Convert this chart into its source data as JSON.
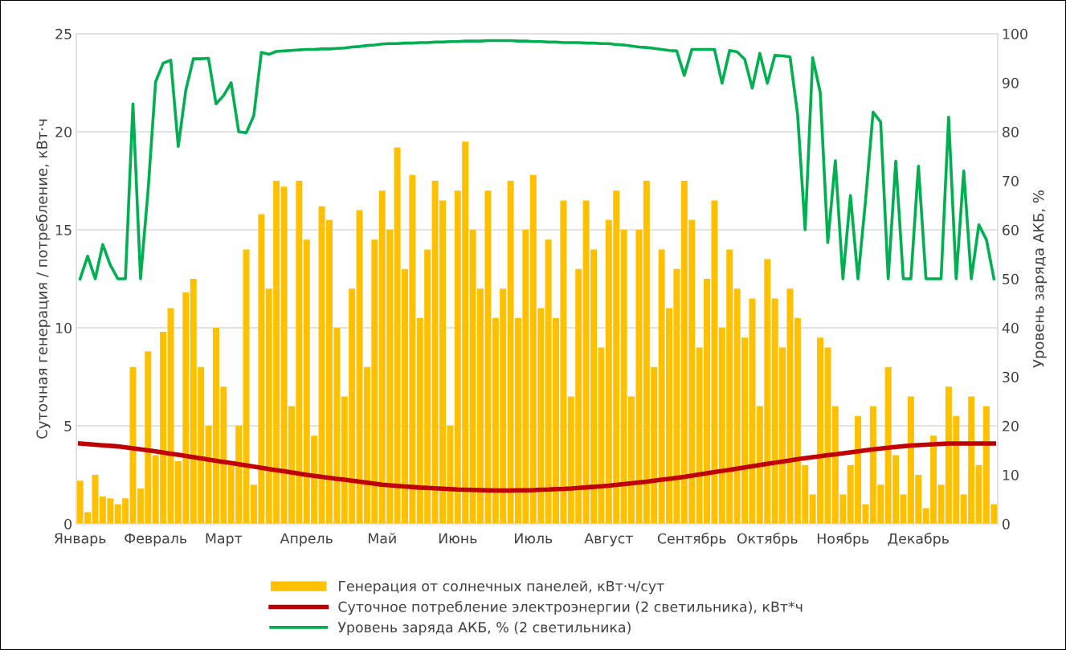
{
  "chart_data": {
    "type": "bar",
    "ylabel": "Суточная генерация / потребление, кВт·ч",
    "y2label": "Уровень заряда АКБ, %",
    "categories": [
      "Январь",
      null,
      null,
      null,
      null,
      null,
      null,
      null,
      null,
      null,
      "Февраль",
      null,
      null,
      null,
      null,
      null,
      null,
      null,
      null,
      "Март",
      null,
      null,
      null,
      null,
      null,
      null,
      null,
      null,
      null,
      null,
      "Апрель",
      null,
      null,
      null,
      null,
      null,
      null,
      null,
      null,
      null,
      "Май",
      null,
      null,
      null,
      null,
      null,
      null,
      null,
      null,
      null,
      "Июнь",
      null,
      null,
      null,
      null,
      null,
      null,
      null,
      null,
      null,
      "Июль",
      null,
      null,
      null,
      null,
      null,
      null,
      null,
      null,
      null,
      "Август",
      null,
      null,
      null,
      null,
      null,
      null,
      null,
      null,
      null,
      null,
      "Сентябрь",
      null,
      null,
      null,
      null,
      null,
      null,
      null,
      null,
      null,
      "Октябрь",
      null,
      null,
      null,
      null,
      null,
      null,
      null,
      null,
      null,
      "Ноябрь",
      null,
      null,
      null,
      null,
      null,
      null,
      null,
      null,
      null,
      "Декабрь",
      null,
      null,
      null,
      null,
      null,
      null,
      null,
      null,
      null,
      null
    ],
    "ylim": [
      0,
      25
    ],
    "yticks": [
      0,
      5,
      10,
      15,
      20,
      25
    ],
    "y2lim": [
      0,
      100
    ],
    "y2ticks": [
      0,
      10,
      20,
      30,
      40,
      50,
      60,
      70,
      80,
      90,
      100
    ],
    "grid": "y",
    "legend": "bottom",
    "series": [
      {
        "name": "Генерация от солнечных панелей, кВт·ч/сут",
        "color": "#ffc000",
        "values": [
          2.2,
          0.6,
          2.5,
          1.4,
          1.3,
          1.0,
          1.3,
          8.0,
          1.8,
          8.8,
          3.5,
          9.8,
          11.0,
          3.2,
          11.8,
          12.5,
          8.0,
          5.0,
          10.0,
          7.0,
          3.0,
          5.0,
          14.0,
          2.0,
          15.8,
          12.0,
          17.5,
          17.2,
          6.0,
          17.5,
          14.5,
          4.5,
          16.2,
          15.5,
          10.0,
          6.5,
          12.0,
          16.0,
          8.0,
          14.5,
          17.0,
          15.0,
          19.2,
          13.0,
          17.8,
          10.5,
          14.0,
          17.5,
          16.5,
          5.0,
          17.0,
          19.5,
          15.0,
          12.0,
          17.0,
          10.5,
          12.0,
          17.5,
          10.5,
          15.0,
          17.8,
          11.0,
          14.5,
          10.5,
          16.5,
          6.5,
          13.0,
          16.5,
          14.0,
          9.0,
          15.5,
          17.0,
          15.0,
          6.5,
          15.0,
          17.5,
          8.0,
          14.0,
          11.0,
          13.0,
          17.5,
          15.5,
          9.0,
          12.5,
          16.5,
          10.0,
          14.0,
          12.0,
          9.5,
          11.5,
          6.0,
          13.5,
          11.5,
          9.0,
          12.0,
          10.5,
          3.0,
          1.5,
          9.5,
          9.0,
          6.0,
          1.5,
          3.0,
          5.5,
          1.0,
          6.0,
          2.0,
          8.0,
          3.5,
          1.5,
          6.5,
          2.5,
          0.8,
          4.5,
          2.0,
          7.0,
          5.5,
          1.5,
          6.5,
          3.0,
          6.0,
          1.0
        ]
      },
      {
        "name": "Суточное потребление электроэнергии (2 светильника), кВт*ч",
        "type": "line",
        "color": "#c00000",
        "values": [
          4.1,
          4.07,
          4.04,
          4.01,
          3.98,
          3.95,
          3.9,
          3.85,
          3.8,
          3.75,
          3.7,
          3.64,
          3.58,
          3.52,
          3.46,
          3.4,
          3.34,
          3.28,
          3.22,
          3.16,
          3.1,
          3.04,
          2.98,
          2.92,
          2.86,
          2.8,
          2.74,
          2.68,
          2.62,
          2.56,
          2.5,
          2.45,
          2.4,
          2.35,
          2.3,
          2.25,
          2.2,
          2.15,
          2.1,
          2.05,
          2.0,
          1.97,
          1.94,
          1.91,
          1.88,
          1.85,
          1.83,
          1.81,
          1.79,
          1.77,
          1.75,
          1.74,
          1.73,
          1.72,
          1.71,
          1.7,
          1.7,
          1.7,
          1.71,
          1.71,
          1.72,
          1.74,
          1.75,
          1.77,
          1.78,
          1.8,
          1.83,
          1.86,
          1.89,
          1.92,
          1.95,
          1.99,
          2.03,
          2.07,
          2.11,
          2.15,
          2.2,
          2.25,
          2.3,
          2.35,
          2.4,
          2.46,
          2.52,
          2.58,
          2.64,
          2.7,
          2.76,
          2.82,
          2.88,
          2.94,
          3.0,
          3.06,
          3.12,
          3.18,
          3.24,
          3.3,
          3.35,
          3.4,
          3.45,
          3.5,
          3.55,
          3.6,
          3.65,
          3.7,
          3.75,
          3.8,
          3.84,
          3.88,
          3.92,
          3.96,
          4.0,
          4.02,
          4.04,
          4.06,
          4.08,
          4.1,
          4.1,
          4.1,
          4.1,
          4.1,
          4.1,
          4.1
        ]
      },
      {
        "name": "Уровень заряда АКБ, % (2 светильника)",
        "type": "line",
        "color": "#00b050",
        "axis": "y2",
        "values": [
          50,
          54.6,
          50,
          57,
          52.8,
          50,
          50,
          85.7,
          50,
          68,
          90.2,
          94,
          94.6,
          77,
          88.5,
          94.9,
          94.9,
          95,
          85.7,
          87.4,
          90,
          80,
          79.8,
          83.3,
          96.2,
          95.8,
          96.4,
          96.5,
          96.6,
          96.7,
          96.8,
          96.8,
          96.9,
          96.9,
          97,
          97.1,
          97.3,
          97.4,
          97.6,
          97.7,
          97.9,
          98,
          98,
          98.1,
          98.1,
          98.2,
          98.2,
          98.3,
          98.3,
          98.4,
          98.4,
          98.5,
          98.5,
          98.5,
          98.6,
          98.6,
          98.6,
          98.6,
          98.5,
          98.5,
          98.4,
          98.4,
          98.3,
          98.3,
          98.2,
          98.2,
          98.2,
          98.1,
          98.1,
          98,
          98,
          97.8,
          97.7,
          97.5,
          97.3,
          97.2,
          97,
          96.8,
          96.6,
          96.5,
          91.5,
          96.8,
          96.8,
          96.8,
          96.8,
          89.9,
          96.6,
          96.3,
          94.8,
          88.9,
          96,
          89.9,
          95.6,
          95.5,
          95.3,
          83.6,
          60,
          95.1,
          88,
          57.4,
          74.1,
          50,
          67,
          50,
          66,
          84,
          82,
          50,
          74,
          50,
          50,
          73,
          50,
          50,
          50,
          83,
          50,
          72,
          50,
          61,
          58,
          50
        ]
      }
    ]
  }
}
